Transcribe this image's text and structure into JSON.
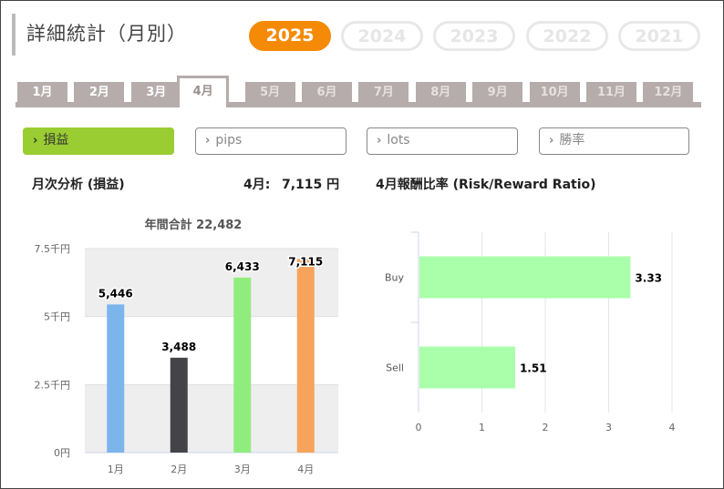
{
  "page_title": "詳細統計（月別）",
  "years": [
    {
      "label": "2025",
      "active": true
    },
    {
      "label": "2024",
      "active": false
    },
    {
      "label": "2023",
      "active": false
    },
    {
      "label": "2022",
      "active": false
    },
    {
      "label": "2021",
      "active": false
    }
  ],
  "months": [
    {
      "label": "1月",
      "state": "has"
    },
    {
      "label": "2月",
      "state": "has"
    },
    {
      "label": "3月",
      "state": "has"
    },
    {
      "label": "4月",
      "state": "active"
    },
    {
      "label": "5月",
      "state": "none"
    },
    {
      "label": "6月",
      "state": "none"
    },
    {
      "label": "7月",
      "state": "none"
    },
    {
      "label": "8月",
      "state": "none"
    },
    {
      "label": "9月",
      "state": "none"
    },
    {
      "label": "10月",
      "state": "none"
    },
    {
      "label": "11月",
      "state": "none"
    },
    {
      "label": "12月",
      "state": "none"
    }
  ],
  "metrics": [
    {
      "label": "損益",
      "active": true
    },
    {
      "label": "pips",
      "active": false
    },
    {
      "label": "lots",
      "active": false
    },
    {
      "label": "勝率",
      "active": false
    }
  ],
  "monthly_analysis": {
    "heading": "月次分析 (損益)",
    "current_month_label": "4月:",
    "current_month_value": "7,115 円",
    "annual_total": "年間合計 22,482"
  },
  "ratio_heading": "4月報酬比率 (Risk/Reward Ratio)",
  "colors": {
    "accent_orange": "#f58a07",
    "accent_green": "#9acd32",
    "tab_gray": "#b5acab"
  },
  "chart_data": [
    {
      "type": "bar",
      "categories": [
        "1月",
        "2月",
        "3月",
        "4月"
      ],
      "values": [
        5446,
        3488,
        6433,
        7115
      ],
      "value_labels": [
        "5,446",
        "3,488",
        "6,433",
        "7,115"
      ],
      "bar_colors": [
        "#7cb5ec",
        "#434348",
        "#90ed7d",
        "#f7a35c"
      ],
      "ylim": [
        0,
        7500
      ],
      "yticks": [
        0,
        2500,
        5000,
        7500
      ],
      "ytick_labels": [
        "0円",
        "2.5千円",
        "5千円",
        "7.5千円"
      ],
      "title": "年間合計 22,482",
      "grid": true
    },
    {
      "type": "bar",
      "orientation": "horizontal",
      "categories": [
        "Buy",
        "Sell"
      ],
      "values": [
        3.33,
        1.51
      ],
      "value_labels": [
        "3.33",
        "1.51"
      ],
      "bar_color": "#aaffaa",
      "xlim": [
        0,
        4
      ],
      "xticks": [
        0,
        1,
        2,
        3,
        4
      ],
      "xtick_labels": [
        "0",
        "1",
        "2",
        "3",
        "4"
      ],
      "grid": true
    }
  ]
}
